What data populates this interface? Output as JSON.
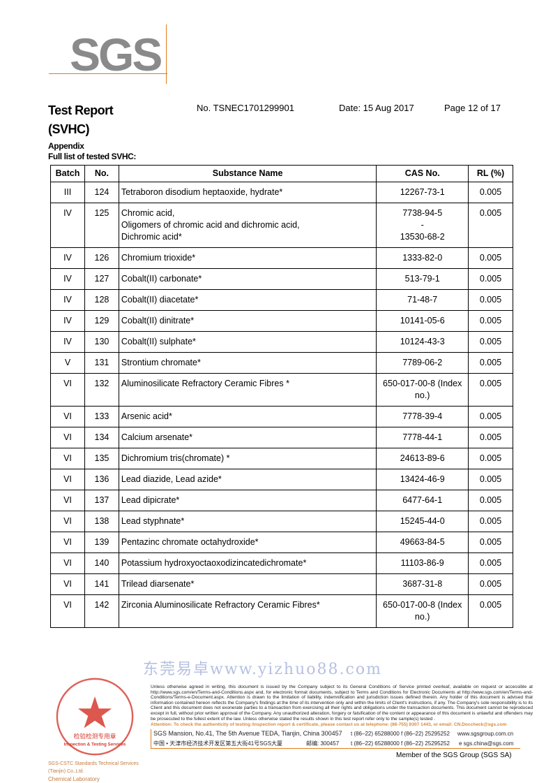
{
  "logo": "SGS",
  "header": {
    "title_line1": "Test Report",
    "title_line2": "(SVHC)",
    "number": "No. TSNEC1701299901",
    "date": "Date: 15 Aug 2017",
    "page": "Page 12 of 17"
  },
  "appendix": {
    "heading": "Appendix",
    "subheading": "Full list of tested SVHC:"
  },
  "table": {
    "columns": [
      "Batch",
      "No.",
      "Substance Name",
      "CAS No.",
      "RL (%)"
    ],
    "rows": [
      {
        "batch": "III",
        "no": "124",
        "name": [
          "Tetraboron disodium heptaoxide, hydrate*"
        ],
        "cas": [
          "12267-73-1"
        ],
        "rl": "0.005"
      },
      {
        "batch": "IV",
        "no": "125",
        "name": [
          "Chromic acid,",
          "Oligomers of chromic acid and dichromic acid,",
          "Dichromic acid*"
        ],
        "cas": [
          "7738-94-5",
          "-",
          "13530-68-2"
        ],
        "rl": "0.005"
      },
      {
        "batch": "IV",
        "no": "126",
        "name": [
          "Chromium trioxide*"
        ],
        "cas": [
          "1333-82-0"
        ],
        "rl": "0.005"
      },
      {
        "batch": "IV",
        "no": "127",
        "name": [
          "Cobalt(II) carbonate*"
        ],
        "cas": [
          "513-79-1"
        ],
        "rl": "0.005"
      },
      {
        "batch": "IV",
        "no": "128",
        "name": [
          "Cobalt(II) diacetate*"
        ],
        "cas": [
          "71-48-7"
        ],
        "rl": "0.005"
      },
      {
        "batch": "IV",
        "no": "129",
        "name": [
          "Cobalt(II) dinitrate*"
        ],
        "cas": [
          "10141-05-6"
        ],
        "rl": "0.005"
      },
      {
        "batch": "IV",
        "no": "130",
        "name": [
          "Cobalt(II) sulphate*"
        ],
        "cas": [
          "10124-43-3"
        ],
        "rl": "0.005"
      },
      {
        "batch": "V",
        "no": "131",
        "name": [
          "Strontium chromate*"
        ],
        "cas": [
          "7789-06-2"
        ],
        "rl": "0.005"
      },
      {
        "batch": "VI",
        "no": "132",
        "name": [
          "Aluminosilicate Refractory Ceramic Fibres *"
        ],
        "cas": [
          "650-017-00-8 (Index",
          "no.)"
        ],
        "rl": "0.005"
      },
      {
        "batch": "VI",
        "no": "133",
        "name": [
          "Arsenic acid*"
        ],
        "cas": [
          "7778-39-4"
        ],
        "rl": "0.005"
      },
      {
        "batch": "VI",
        "no": "134",
        "name": [
          "Calcium arsenate*"
        ],
        "cas": [
          "7778-44-1"
        ],
        "rl": "0.005"
      },
      {
        "batch": "VI",
        "no": "135",
        "name": [
          "Dichromium tris(chromate) *"
        ],
        "cas": [
          "24613-89-6"
        ],
        "rl": "0.005"
      },
      {
        "batch": "VI",
        "no": "136",
        "name": [
          "Lead diazide, Lead azide*"
        ],
        "cas": [
          "13424-46-9"
        ],
        "rl": "0.005"
      },
      {
        "batch": "VI",
        "no": "137",
        "name": [
          "Lead dipicrate*"
        ],
        "cas": [
          "6477-64-1"
        ],
        "rl": "0.005"
      },
      {
        "batch": "VI",
        "no": "138",
        "name": [
          "Lead styphnate*"
        ],
        "cas": [
          "15245-44-0"
        ],
        "rl": "0.005"
      },
      {
        "batch": "VI",
        "no": "139",
        "name": [
          "Pentazinc chromate octahydroxide*"
        ],
        "cas": [
          "49663-84-5"
        ],
        "rl": "0.005"
      },
      {
        "batch": "VI",
        "no": "140",
        "name": [
          "Potassium hydroxyoctaoxodizincatedichromate*"
        ],
        "cas": [
          "11103-86-9"
        ],
        "rl": "0.005"
      },
      {
        "batch": "VI",
        "no": "141",
        "name": [
          "Trilead diarsenate*"
        ],
        "cas": [
          "3687-31-8"
        ],
        "rl": "0.005"
      },
      {
        "batch": "VI",
        "no": "142",
        "name": [
          "Zirconia Aluminosilicate Refractory Ceramic Fibres*"
        ],
        "cas": [
          "650-017-00-8 (Index",
          "no.)"
        ],
        "rl": "0.005"
      }
    ]
  },
  "watermark": "东莞易卓www.yizhuo88.com",
  "stamp": {
    "text": "通标标准技术服务(天津)有限公司 检验检测专用章 Inspection & Testing Services SGS-CSTC Standards Technical Services (Tianjin) Co.,Ltd."
  },
  "footer": {
    "lab_line1": "SGS-CSTC Standards Technical Services (Tianjin) Co.,Ltd.",
    "lab_line2": "Chemical Laboratory",
    "legal": "Unless otherwise agreed in writing, this document is issued by the Company subject to its General Conditions of Service printed overleaf, available on request or accessible at http://www.sgs.com/en/Terms-and-Conditions.aspx and, for electronic format documents, subject to Terms and Conditions for Electronic Documents at http://www.sgs.com/en/Terms-and-Conditions/Terms-e-Document.aspx. Attention is drawn to the limitation of liability, indemnification and jurisdiction issues defined therein. Any holder of this document is advised that information contained hereon reflects the Company's findings at the time of its intervention only and within the limits of Client's instructions, if any. The Company's sole responsibility is to its Client and this document does not exonerate parties to a transaction from exercising all their rights and obligations under the transaction documents. This document cannot be reproduced except in full, without prior written approval of the Company. Any unauthorized alteration, forgery or falsification of the content or appearance of this document is unlawful and offenders may be prosecuted to the fullest extent of the law. Unless otherwise stated the results shown in this test report refer only to the sample(s) tested .",
    "attention": "Attention: To check the authenticity of testing /inspection report & certificate, please contact us at telephone: (86-755) 8307 1443, or email: ",
    "email": "CN.Doccheck@sgs.com",
    "addr_en": "SGS Mansion, No.41, The 5th Avenue TEDA, Tianjin, China 300457",
    "addr_cn": "中国 • 天津市经济技术开发区第五大街41号SGS大厦",
    "postcode_cn": "邮编: 300457",
    "phone1": "t (86–22) 65288000  f (86–22) 25295252",
    "phone2": "t (86–22) 65288000  f (86–22) 25295252",
    "web": "www.sgsgroup.com.cn",
    "email2": "e  sgs.china@sgs.com",
    "member": "Member of the SGS Group (SGS SA)"
  },
  "colors": {
    "accent": "#e07b1a",
    "logo_gray": "#8a8a8a",
    "stamp_red": "#d63a2e"
  }
}
